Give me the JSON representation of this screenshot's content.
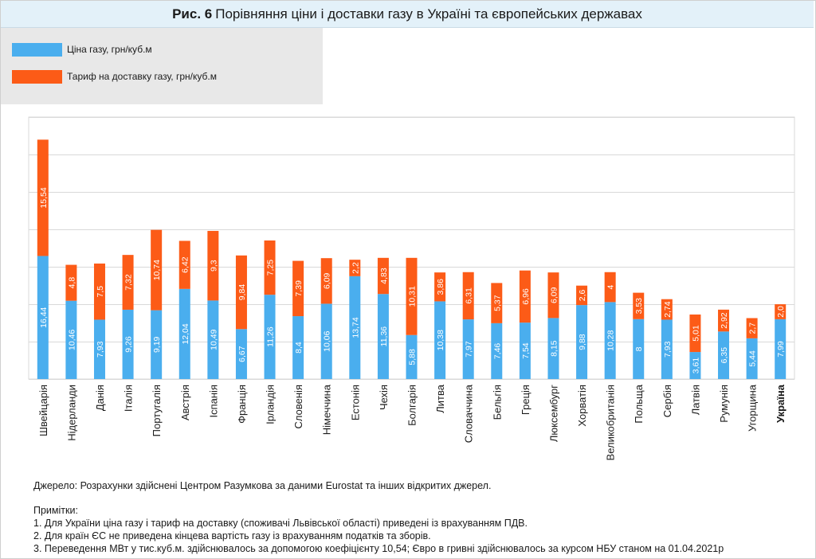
{
  "title": {
    "prefix": "Рис. 6",
    "text": "Порівняння ціни і доставки газу в Україні та європейських державах"
  },
  "legend": {
    "items": [
      {
        "label": "Ціна газу, грн/куб.м",
        "color": "#4aaeee"
      },
      {
        "label": "Тариф на доставку газу, грн/куб.м",
        "color": "#fc5b17"
      }
    ]
  },
  "chart_data": {
    "type": "bar",
    "stacked": true,
    "orientation": "vertical",
    "categories": [
      "Швейцарія",
      "Нідерланди",
      "Данія",
      "Італія",
      "Португалія",
      "Австрія",
      "Іспанія",
      "Франція",
      "Ірландія",
      "Словенія",
      "Німеччина",
      "Естонія",
      "Чехія",
      "Болгарія",
      "Литва",
      "Словаччина",
      "Бельгія",
      "Греція",
      "Люксембург",
      "Хорватія",
      "Великобританія",
      "Польща",
      "Сербія",
      "Латвія",
      "Румунія",
      "Угорщина",
      "Україна"
    ],
    "highlight_category": "Україна",
    "series": [
      {
        "name": "Ціна газу, грн/куб.м",
        "color": "#4aaeee",
        "values": [
          16.44,
          10.46,
          7.93,
          9.26,
          9.19,
          12.04,
          10.49,
          6.67,
          11.26,
          8.4,
          10.06,
          13.74,
          11.36,
          5.88,
          10.38,
          7.97,
          7.46,
          7.54,
          8.15,
          9.88,
          10.28,
          8,
          7.93,
          3.61,
          6.35,
          5.44,
          7.99
        ],
        "labels": [
          "16,44",
          "10,46",
          "7,93",
          "9,26",
          "9,19",
          "12,04",
          "10,49",
          "6,67",
          "11,26",
          "8,4",
          "10,06",
          "13,74",
          "11,36",
          "5,88",
          "10,38",
          "7,97",
          "7,46",
          "7,54",
          "8,15",
          "9,88",
          "10,28",
          "8",
          "7,93",
          "3,61",
          "6,35",
          "5,44",
          "7,99"
        ]
      },
      {
        "name": "Тариф на доставку газу, грн/куб.м",
        "color": "#fc5b17",
        "values": [
          15.54,
          4.8,
          7.5,
          7.32,
          10.74,
          6.42,
          9.3,
          9.84,
          7.25,
          7.39,
          6.09,
          2.2,
          4.83,
          10.31,
          3.86,
          6.31,
          5.37,
          6.96,
          6.09,
          2.6,
          4,
          3.53,
          2.74,
          5.01,
          2.92,
          2.7,
          2.0
        ],
        "labels": [
          "15,54",
          "4,8",
          "7,5",
          "7,32",
          "10,74",
          "6,42",
          "9,3",
          "9,84",
          "7,25",
          "7,39",
          "6,09",
          "2,2",
          "4,83",
          "10,31",
          "3,86",
          "6,31",
          "5,37",
          "6,96",
          "6,09",
          "2,6",
          "4",
          "3,53",
          "2,74",
          "5,01",
          "2,92",
          "2,7",
          "2,0"
        ]
      }
    ],
    "ylim": [
      0,
      35
    ],
    "grid": true,
    "xlabel": "",
    "ylabel": ""
  },
  "notes": {
    "source": "Джерело: Розрахунки здійснені Центром Разумкова за даними Eurostat та інших відкритих джерел.",
    "heading": "Примітки:",
    "items": [
      "1. Для України ціна газу  і тариф на доставку (споживачі Львівської області) приведені із врахуванням ПДВ.",
      "2. Для країн ЄС не приведена кінцева вартість газу із врахуванням податків та зборів.",
      "3. Переведення МВт у тис.куб.м. здійснювалось за допомогою коефіцієнту 10,54;  Євро в гривні здійснювалось за курсом НБУ станом на 01.04.2021р"
    ]
  }
}
